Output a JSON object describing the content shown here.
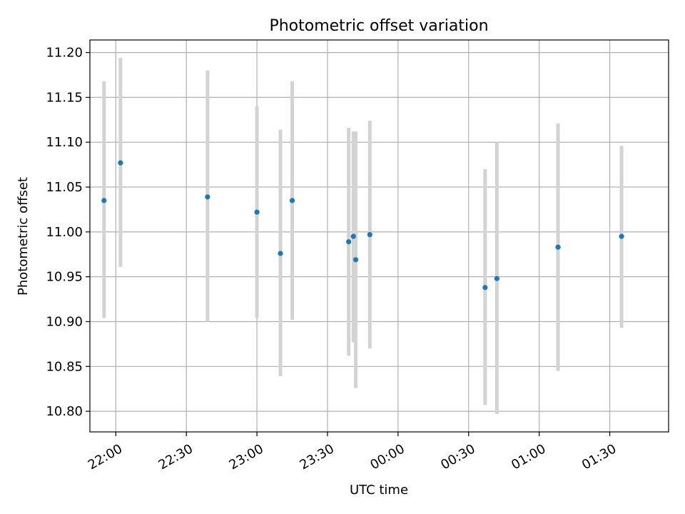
{
  "chart_data": {
    "type": "scatter",
    "title": "Photometric offset variation",
    "xlabel": "UTC time",
    "ylabel": "Photometric offset",
    "x_unit": "UTC time of night (hh:mm, starting evening)",
    "xlim": [
      "21:49",
      "01:55"
    ],
    "x_ticks": [
      "22:00",
      "22:30",
      "23:00",
      "23:30",
      "00:00",
      "00:30",
      "01:00",
      "01:30"
    ],
    "ylim": [
      10.777,
      11.214
    ],
    "y_ticks": [
      "10.80",
      "10.85",
      "10.90",
      "10.95",
      "11.00",
      "11.05",
      "11.10",
      "11.15",
      "11.20"
    ],
    "grid": true,
    "legend": "none",
    "colors": {
      "point": "#1f77b4",
      "errorbar": "#d3d3d3",
      "grid": "#b0b0b0"
    },
    "points": [
      {
        "time": "21:55",
        "y": 11.035,
        "low": 10.904,
        "high": 11.168
      },
      {
        "time": "22:02",
        "y": 11.077,
        "low": 10.961,
        "high": 11.194
      },
      {
        "time": "22:39",
        "y": 11.039,
        "low": 10.9,
        "high": 11.18
      },
      {
        "time": "23:00",
        "y": 11.022,
        "low": 10.904,
        "high": 11.14
      },
      {
        "time": "23:10",
        "y": 10.976,
        "low": 10.839,
        "high": 11.114
      },
      {
        "time": "23:15",
        "y": 11.035,
        "low": 10.902,
        "high": 11.168
      },
      {
        "time": "23:39",
        "y": 10.989,
        "low": 10.862,
        "high": 11.116
      },
      {
        "time": "23:41",
        "y": 10.995,
        "low": 10.877,
        "high": 11.112
      },
      {
        "time": "23:42",
        "y": 10.969,
        "low": 10.826,
        "high": 11.112
      },
      {
        "time": "23:48",
        "y": 10.997,
        "low": 10.87,
        "high": 11.124
      },
      {
        "time": "00:37",
        "y": 10.938,
        "low": 10.807,
        "high": 11.07
      },
      {
        "time": "00:42",
        "y": 10.948,
        "low": 10.797,
        "high": 11.1
      },
      {
        "time": "01:08",
        "y": 10.983,
        "low": 10.845,
        "high": 11.121
      },
      {
        "time": "01:35",
        "y": 10.995,
        "low": 10.893,
        "high": 11.096
      }
    ]
  }
}
